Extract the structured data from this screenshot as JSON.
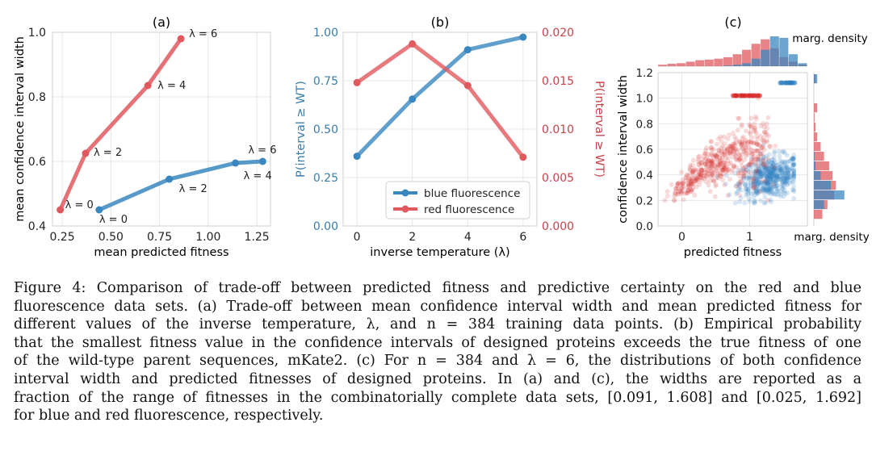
{
  "colors": {
    "blue": "#3a87c0",
    "red": "#e0595f",
    "blue_scatter": "#2f7fc1",
    "red_scatter": "#d62728",
    "blue_text": "#3a7ca8",
    "red_text": "#c9404a",
    "grid": "#e6e6e6"
  },
  "chart_data": [
    {
      "id": "a",
      "type": "line",
      "title": "(a)",
      "xlabel": "mean predicted fitness",
      "ylabel": "mean confidence interval width",
      "xlim": [
        0.2,
        1.32
      ],
      "ylim": [
        0.4,
        1.0
      ],
      "xticks": [
        "0.25",
        "0.50",
        "0.75",
        "1.00",
        "1.25"
      ],
      "yticks": [
        "0.4",
        "0.6",
        "0.8",
        "1.0"
      ],
      "series": [
        {
          "name": "red fluorescence",
          "color": "red",
          "points": [
            [
              0.24,
              0.45
            ],
            [
              0.37,
              0.625
            ],
            [
              0.69,
              0.835
            ],
            [
              0.86,
              0.98
            ]
          ],
          "labels": [
            "λ = 0",
            "λ = 2",
            "λ = 4",
            "λ = 6"
          ]
        },
        {
          "name": "blue fluorescence",
          "color": "blue",
          "points": [
            [
              0.44,
              0.45
            ],
            [
              0.8,
              0.545
            ],
            [
              1.14,
              0.595
            ],
            [
              1.28,
              0.6
            ]
          ],
          "labels": [
            "λ = 0",
            "λ = 2",
            "λ = 4",
            "λ = 6"
          ]
        }
      ]
    },
    {
      "id": "b",
      "type": "line",
      "title": "(b)",
      "xlabel": "inverse temperature (λ)",
      "ylabel_left": "P(interval ≥ WT)",
      "ylabel_right": "P(interval ≥ WT)",
      "x": [
        0,
        2,
        4,
        6
      ],
      "xticks": [
        "0",
        "2",
        "4",
        "6"
      ],
      "yticks_left": [
        "0.00",
        "0.25",
        "0.50",
        "0.75",
        "1.00"
      ],
      "yticks_right": [
        "0.000",
        "0.005",
        "0.010",
        "0.015",
        "0.020"
      ],
      "ylim_left": [
        0,
        1
      ],
      "ylim_right": [
        0,
        0.02
      ],
      "series": [
        {
          "name": "blue fluorescence",
          "color": "blue",
          "axis": "left",
          "values": [
            0.36,
            0.655,
            0.91,
            0.975
          ]
        },
        {
          "name": "red fluorescence",
          "color": "red",
          "axis": "right",
          "values": [
            0.0148,
            0.0188,
            0.0145,
            0.0071
          ]
        }
      ],
      "legend": [
        "blue fluorescence",
        "red fluorescence"
      ],
      "legend_position": "lower-right"
    },
    {
      "id": "c",
      "type": "scatter",
      "title": "(c)",
      "xlabel": "predicted fitness",
      "ylabel": "confidence interval width",
      "xlim": [
        -0.35,
        1.85
      ],
      "ylim": [
        0,
        1.2
      ],
      "xticks": [
        "0",
        "1"
      ],
      "yticks": [
        "0.0",
        "0.2",
        "0.4",
        "0.6",
        "0.8",
        "1.0",
        "1.2"
      ],
      "series": [
        {
          "name": "blue fluorescence",
          "color": "blue_scatter",
          "center": [
            1.3,
            0.38
          ],
          "spread": [
            0.25,
            0.08
          ],
          "plateau": [
            1.35,
            1.12
          ]
        },
        {
          "name": "red fluorescence",
          "color": "red_scatter",
          "center": [
            0.95,
            0.6
          ],
          "spread": [
            0.25,
            0.13
          ],
          "plateau": [
            0.95,
            1.02
          ]
        }
      ],
      "top_marginal_label": "marg. density",
      "right_marginal_label": "marg. density",
      "top_hist": {
        "red": [
          0.05,
          0.08,
          0.1,
          0.15,
          0.2,
          0.22,
          0.25,
          0.3,
          0.4,
          0.55,
          0.75,
          0.9,
          0.6,
          0.3,
          0.15,
          0.05
        ],
        "blue": [
          0,
          0,
          0,
          0,
          0,
          0,
          0,
          0.02,
          0.05,
          0.1,
          0.25,
          0.55,
          1.0,
          0.95,
          0.4,
          0.1
        ]
      },
      "right_hist": {
        "red": [
          0.25,
          0.4,
          0.6,
          0.65,
          0.55,
          0.45,
          0.3,
          0.2,
          0.1,
          0.05,
          0.02,
          0.1,
          0.0,
          0.0,
          0.05
        ],
        "blue": [
          0,
          0.3,
          0.9,
          0.5,
          0.2,
          0.05,
          0.02,
          0,
          0,
          0,
          0,
          0,
          0,
          0,
          0.1
        ]
      }
    }
  ],
  "caption": {
    "lines": [
      "Figure 4: Comparison of trade-off between predicted fitness and predictive certainty on the red and blue",
      "fluorescence data sets. (a) Trade-off between mean confidence interval width and mean predicted fitness for",
      "different values of the inverse temperature, λ, and n = 384 training data points. (b) Empirical probability",
      "that the smallest fitness value in the confidence intervals of designed proteins exceeds the true fitness of one",
      "of the wild-type parent sequences, mKate2. (c) For n = 384 and λ = 6, the distributions of both confidence",
      "interval width and predicted fitnesses of designed proteins. In (a) and (c), the widths are reported as a",
      "fraction of the range of fitnesses in the combinatorially complete data sets, [0.091, 1.608] and [0.025, 1.692]",
      "for blue and red fluorescence, respectively."
    ]
  }
}
